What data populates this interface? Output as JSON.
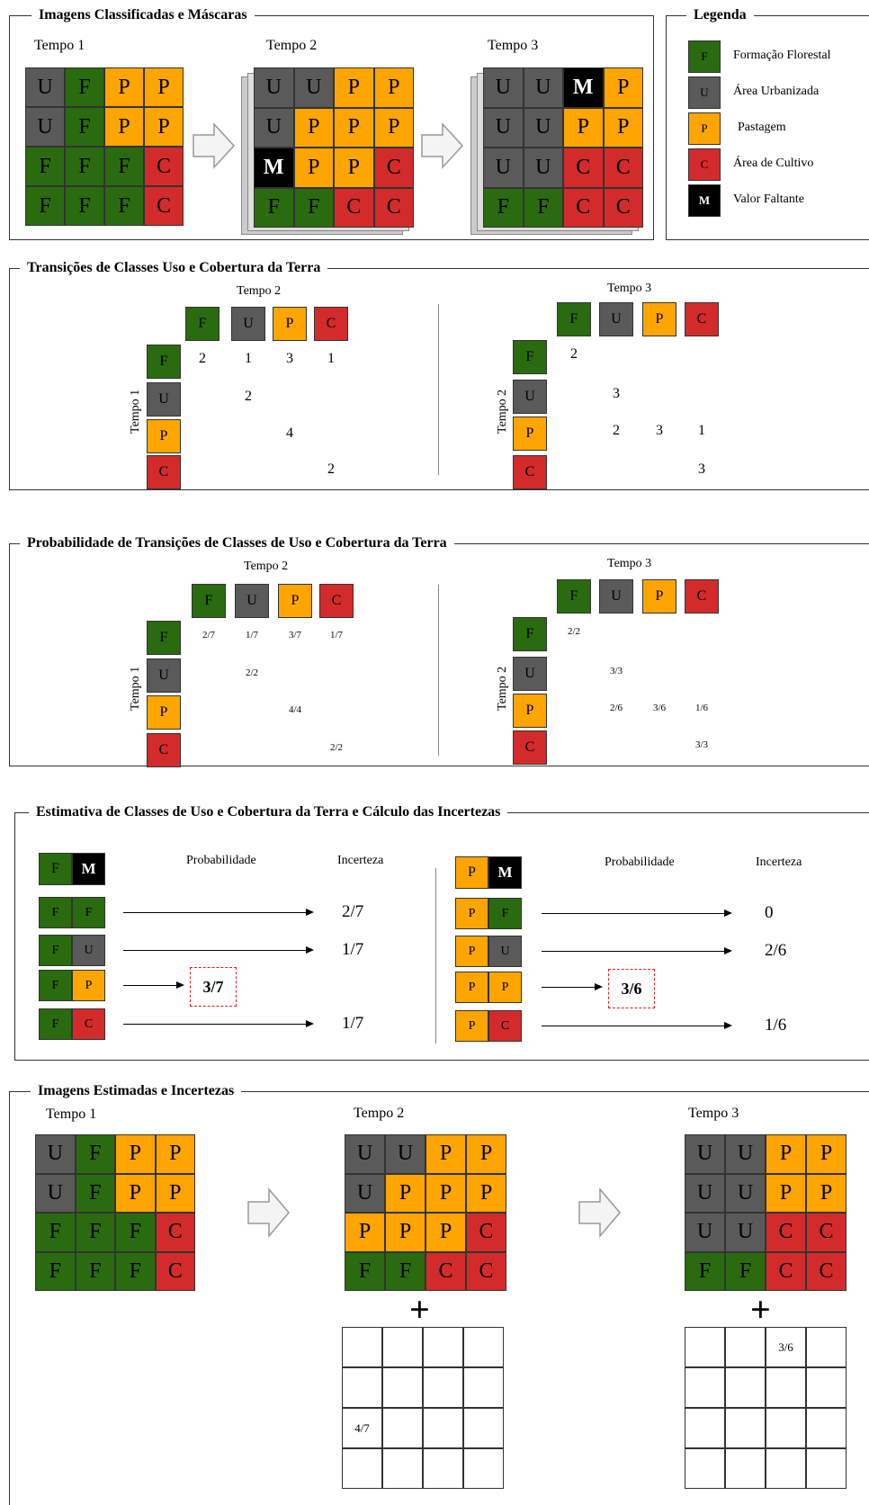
{
  "colors": {
    "F": "#2a6b10",
    "U": "#5a5a5a",
    "P": "#ffa500",
    "C": "#d32b2b",
    "M": "#000000"
  },
  "panel1": {
    "title": "Imagens Classificadas e Máscaras",
    "grids": [
      {
        "label": "Tempo 1",
        "cells": [
          [
            "U",
            "F",
            "P",
            "P"
          ],
          [
            "U",
            "F",
            "P",
            "P"
          ],
          [
            "F",
            "F",
            "F",
            "C"
          ],
          [
            "F",
            "F",
            "F",
            "C"
          ]
        ]
      },
      {
        "label": "Tempo 2",
        "cells": [
          [
            "U",
            "U",
            "P",
            "P"
          ],
          [
            "U",
            "P",
            "P",
            "P"
          ],
          [
            "M",
            "P",
            "P",
            "C"
          ],
          [
            "F",
            "F",
            "C",
            "C"
          ]
        ]
      },
      {
        "label": "Tempo 3",
        "cells": [
          [
            "U",
            "U",
            "M",
            "P"
          ],
          [
            "U",
            "U",
            "P",
            "P"
          ],
          [
            "U",
            "U",
            "C",
            "C"
          ],
          [
            "F",
            "F",
            "C",
            "C"
          ]
        ]
      }
    ]
  },
  "legend": {
    "title": "Legenda",
    "items": [
      {
        "code": "F",
        "label": "Formação Florestal"
      },
      {
        "code": "U",
        "label": "Área Urbanizada"
      },
      {
        "code": "P",
        "label": "Pastagem"
      },
      {
        "code": "C",
        "label": "Área de Cultivo"
      },
      {
        "code": "M",
        "label": "Valor Faltante"
      }
    ]
  },
  "panel2": {
    "title": "Transições de Classes Uso e Cobertura da Terra",
    "left": {
      "col_label": "Tempo 2",
      "row_label": "Tempo 1",
      "classes": [
        "F",
        "U",
        "P",
        "C"
      ],
      "values": [
        [
          "2",
          "1",
          "3",
          "1"
        ],
        [
          "",
          "2",
          "",
          ""
        ],
        [
          "",
          "",
          "4",
          ""
        ],
        [
          "",
          "",
          "",
          "2"
        ]
      ]
    },
    "right": {
      "col_label": "Tempo 3",
      "row_label": "Tempo 2",
      "classes": [
        "F",
        "U",
        "P",
        "C"
      ],
      "values": [
        [
          "2",
          "",
          "",
          ""
        ],
        [
          "",
          "3",
          "",
          ""
        ],
        [
          "",
          "2",
          "3",
          "1"
        ],
        [
          "",
          "",
          "",
          "3"
        ]
      ]
    }
  },
  "panel3": {
    "title": "Probabilidade de Transições de Classes de Uso e Cobertura da Terra",
    "left": {
      "col_label": "Tempo 2",
      "row_label": "Tempo 1",
      "classes": [
        "F",
        "U",
        "P",
        "C"
      ],
      "values": [
        [
          "2/7",
          "1/7",
          "3/7",
          "1/7"
        ],
        [
          "",
          "2/2",
          "",
          ""
        ],
        [
          "",
          "",
          "4/4",
          ""
        ],
        [
          "",
          "",
          "",
          "2/2"
        ]
      ]
    },
    "right": {
      "col_label": "Tempo 3",
      "row_label": "Tempo 2",
      "classes": [
        "F",
        "U",
        "P",
        "C"
      ],
      "values": [
        [
          "2/2",
          "",
          "",
          ""
        ],
        [
          "",
          "3/3",
          "",
          ""
        ],
        [
          "",
          "2/6",
          "3/6",
          "1/6"
        ],
        [
          "",
          "",
          "",
          "3/3"
        ]
      ]
    }
  },
  "panel4": {
    "title": "Estimativa de Classes de Uso e Cobertura da Terra e Cálculo das Incertezas",
    "prob_label": "Probabilidade",
    "unc_label": "Incerteza",
    "left": {
      "head": [
        "F",
        "M"
      ],
      "rows": [
        {
          "pair": [
            "F",
            "F"
          ],
          "value": "2/7",
          "selected": false
        },
        {
          "pair": [
            "F",
            "U"
          ],
          "value": "1/7",
          "selected": false
        },
        {
          "pair": [
            "F",
            "P"
          ],
          "value": "3/7",
          "selected": true
        },
        {
          "pair": [
            "F",
            "C"
          ],
          "value": "1/7",
          "selected": false
        }
      ]
    },
    "right": {
      "head": [
        "P",
        "M"
      ],
      "rows": [
        {
          "pair": [
            "P",
            "F"
          ],
          "value": "0",
          "selected": false
        },
        {
          "pair": [
            "P",
            "U"
          ],
          "value": "2/6",
          "selected": false
        },
        {
          "pair": [
            "P",
            "P"
          ],
          "value": "3/6",
          "selected": true
        },
        {
          "pair": [
            "P",
            "C"
          ],
          "value": "1/6",
          "selected": false
        }
      ]
    }
  },
  "panel5": {
    "title": "Imagens Estimadas e Incertezas",
    "grids": [
      {
        "label": "Tempo 1",
        "cells": [
          [
            "U",
            "F",
            "P",
            "P"
          ],
          [
            "U",
            "F",
            "P",
            "P"
          ],
          [
            "F",
            "F",
            "F",
            "C"
          ],
          [
            "F",
            "F",
            "F",
            "C"
          ]
        ]
      },
      {
        "label": "Tempo 2",
        "cells": [
          [
            "U",
            "U",
            "P",
            "P"
          ],
          [
            "U",
            "P",
            "P",
            "P"
          ],
          [
            "P",
            "P",
            "P",
            "C"
          ],
          [
            "F",
            "F",
            "C",
            "C"
          ]
        ]
      },
      {
        "label": "Tempo 3",
        "cells": [
          [
            "U",
            "U",
            "P",
            "P"
          ],
          [
            "U",
            "U",
            "P",
            "P"
          ],
          [
            "U",
            "U",
            "C",
            "C"
          ],
          [
            "F",
            "F",
            "C",
            "C"
          ]
        ]
      }
    ],
    "plus": "+",
    "uncertainty_t2": [
      [
        "",
        "",
        "",
        ""
      ],
      [
        "",
        "",
        "",
        ""
      ],
      [
        "4/7",
        "",
        "",
        ""
      ],
      [
        "",
        "",
        "",
        ""
      ]
    ],
    "uncertainty_t3": [
      [
        "",
        "",
        "3/6",
        ""
      ],
      [
        "",
        "",
        "",
        ""
      ],
      [
        "",
        "",
        "",
        ""
      ],
      [
        "",
        "",
        "",
        ""
      ]
    ]
  }
}
